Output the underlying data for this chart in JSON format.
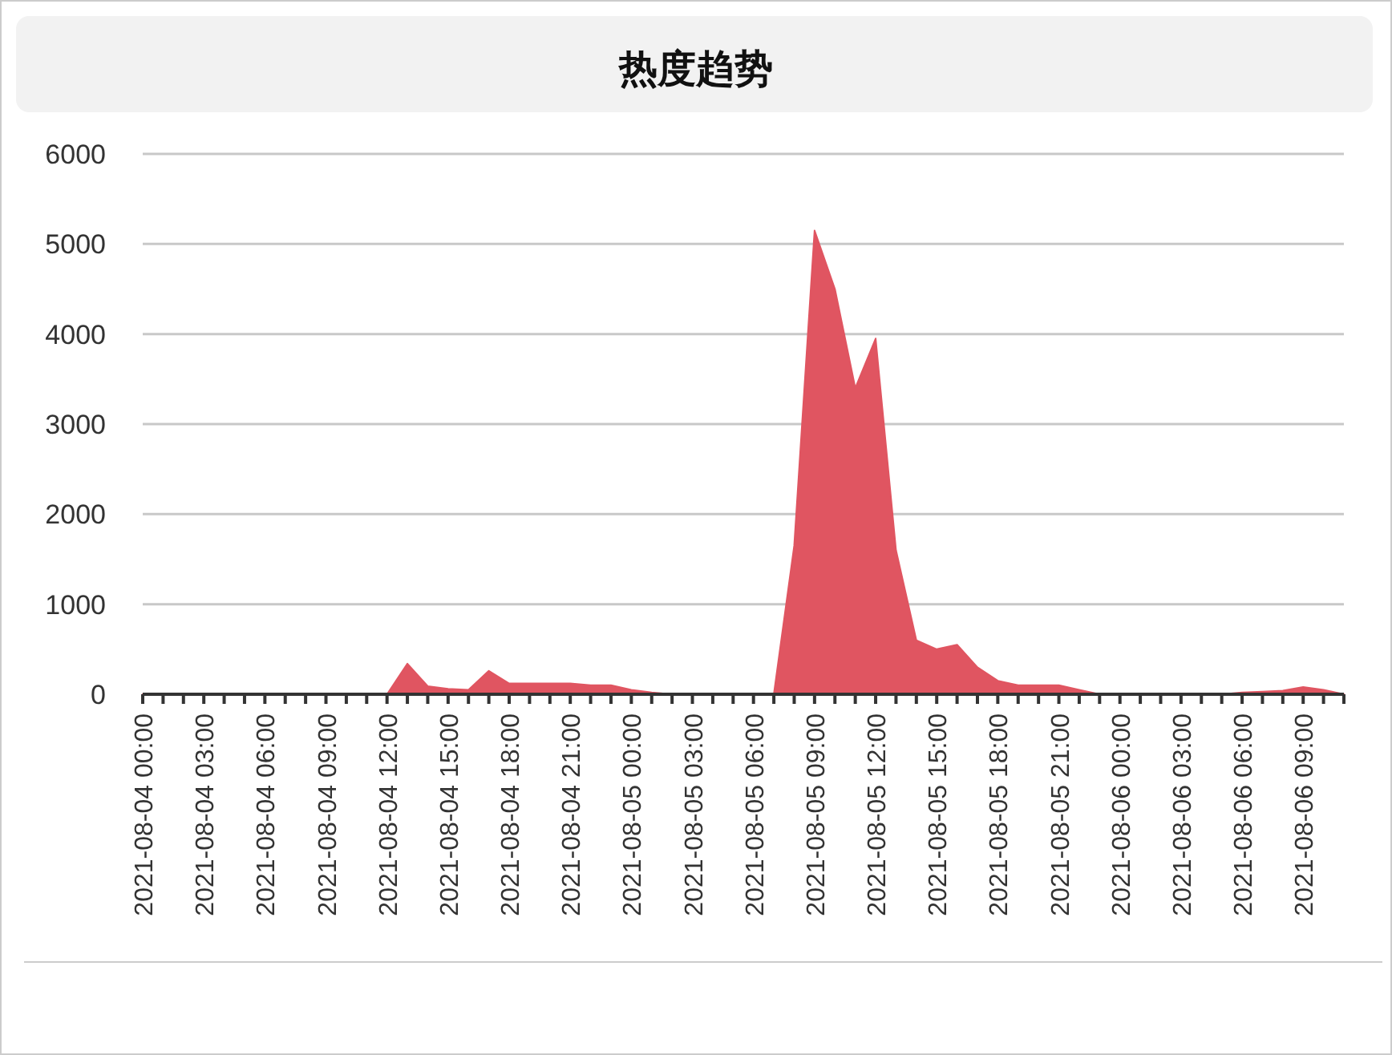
{
  "chart_data": {
    "type": "area",
    "title": "热度趋势",
    "categories": [
      "2021-08-04 00:00",
      null,
      null,
      "2021-08-04 03:00",
      null,
      null,
      "2021-08-04 06:00",
      null,
      null,
      "2021-08-04 09:00",
      null,
      null,
      "2021-08-04 12:00",
      null,
      null,
      "2021-08-04 15:00",
      null,
      null,
      "2021-08-04 18:00",
      null,
      null,
      "2021-08-04 21:00",
      null,
      null,
      "2021-08-05 00:00",
      null,
      null,
      "2021-08-05 03:00",
      null,
      null,
      "2021-08-05 06:00",
      null,
      null,
      "2021-08-05 09:00",
      null,
      null,
      "2021-08-05 12:00",
      null,
      null,
      "2021-08-05 15:00",
      null,
      null,
      "2021-08-05 18:00",
      null,
      null,
      "2021-08-05 21:00",
      null,
      null,
      "2021-08-06 00:00",
      null,
      null,
      "2021-08-06 03:00",
      null,
      null,
      "2021-08-06 06:00",
      null,
      null,
      "2021-08-06 09:00",
      null,
      null
    ],
    "values": [
      0,
      0,
      0,
      0,
      0,
      0,
      0,
      0,
      0,
      0,
      0,
      0,
      0,
      340,
      90,
      60,
      50,
      260,
      120,
      120,
      120,
      120,
      100,
      100,
      50,
      20,
      0,
      0,
      0,
      0,
      10,
      0,
      1650,
      5150,
      4500,
      3400,
      3950,
      1600,
      600,
      500,
      550,
      300,
      150,
      100,
      100,
      100,
      50,
      0,
      0,
      0,
      0,
      0,
      0,
      0,
      20,
      30,
      40,
      80,
      50,
      0
    ],
    "color": "#e05561",
    "ylim": [
      0,
      6000
    ],
    "yticks": [
      0,
      1000,
      2000,
      3000,
      4000,
      5000,
      6000
    ],
    "grid": "y"
  }
}
